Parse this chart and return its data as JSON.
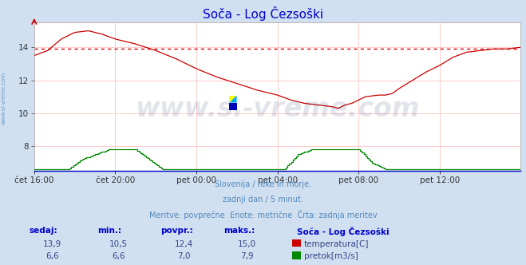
{
  "title": "Soča - Log Čezsoški",
  "title_color": "#0000cc",
  "bg_color": "#d0e0f0",
  "plot_bg_color": "#ffffff",
  "grid_color": "#ffcccc",
  "x_labels": [
    "čet 16:00",
    "čet 20:00",
    "pet 00:00",
    "pet 04:00",
    "pet 08:00",
    "pet 12:00"
  ],
  "x_ticks_pos": [
    0,
    48,
    96,
    144,
    192,
    240
  ],
  "total_points": 289,
  "ylim": [
    6.5,
    15.5
  ],
  "yticks": [
    8,
    10,
    12,
    14
  ],
  "avg_temp": 13.9,
  "subtitle_lines": [
    "Slovenija / reke in morje.",
    "zadnji dan / 5 minut.",
    "Meritve: povprečne  Enote: metrične  Črta: zadnja meritev"
  ],
  "subtitle_color": "#5588bb",
  "table_label_color": "#0000cc",
  "table_value_color": "#334488",
  "watermark_color": "#1a3a6a",
  "watermark_text": "www.si-vreme.com",
  "watermark_alpha": 0.13,
  "temp_color": "#cc0000",
  "flow_color": "#008800",
  "avg_line_color": "#cc0000",
  "left_label": "www.si-vreme.com",
  "left_label_color": "#5588bb",
  "headers": [
    "sedaj:",
    "min.:",
    "povpr.:",
    "maks.:"
  ],
  "temp_vals": [
    "13,9",
    "10,5",
    "12,4",
    "15,0"
  ],
  "flow_vals": [
    "6,6",
    "6,6",
    "7,0",
    "7,9"
  ],
  "station_name": "Soča - Log Čezsoški",
  "legend_temp": "temperatura[C]",
  "legend_flow": "pretok[m3/s]"
}
